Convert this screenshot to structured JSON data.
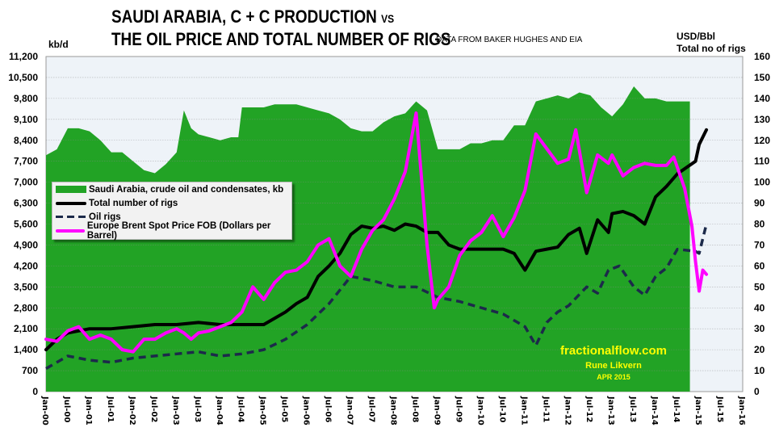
{
  "title_line1": "SAUDI ARABIA, C + C PRODUCTION",
  "title_vs": "VS",
  "title_line2": "THE OIL PRICE AND TOTAL NUMBER OF RIGS",
  "source_note": "DATA FROM BAKER HUGHES AND EIA",
  "watermark": {
    "site": "fractionalflow.com",
    "author": "Rune Likvern",
    "date": "APR 2015"
  },
  "chart_data": {
    "type": "area+line",
    "left_axis": {
      "label": "kb/d",
      "range": [
        0,
        11200
      ],
      "ticks": [
        "0",
        "700",
        "1,400",
        "2,100",
        "2,800",
        "3,500",
        "4,200",
        "4,900",
        "5,600",
        "6,300",
        "7,000",
        "7,700",
        "8,400",
        "9,100",
        "9,800",
        "10,500",
        "11,200"
      ]
    },
    "right_axis": {
      "label1": "USD/Bbl",
      "label2": "Total no of rigs",
      "range": [
        0,
        160
      ],
      "ticks": [
        "0",
        "10",
        "20",
        "30",
        "40",
        "50",
        "60",
        "70",
        "80",
        "90",
        "100",
        "110",
        "120",
        "130",
        "140",
        "150",
        "160"
      ]
    },
    "x_axis": {
      "range": [
        "2000-01",
        "2016-01"
      ],
      "ticks": [
        "Jan-00",
        "Jul-00",
        "Jan-01",
        "Jul-01",
        "Jan-02",
        "Jul-02",
        "Jan-03",
        "Jul-03",
        "Jan-04",
        "Jul-04",
        "Jan-05",
        "Jul-05",
        "Jan-06",
        "Jul-06",
        "Jan-07",
        "Jul-07",
        "Jan-08",
        "Jul-08",
        "Jan-09",
        "Jul-09",
        "Jan-10",
        "Jul-10",
        "Jan-11",
        "Jul-11",
        "Jan-12",
        "Jul-12",
        "Jan-13",
        "Jul-13",
        "Jan-14",
        "Jul-14",
        "Jan-15",
        "Jul-15",
        "Jan-16"
      ]
    },
    "grid": true,
    "legend_placement": "center-left",
    "series": [
      {
        "name": "Saudi Arabia, crude oil and condensates, kb",
        "kind": "area",
        "axis": "left",
        "color": "#22a325",
        "x": [
          "2000-01",
          "2000-04",
          "2000-07",
          "2000-10",
          "2001-01",
          "2001-04",
          "2001-07",
          "2001-10",
          "2002-01",
          "2002-04",
          "2002-07",
          "2002-10",
          "2003-01",
          "2003-03",
          "2003-05",
          "2003-07",
          "2003-10",
          "2004-01",
          "2004-04",
          "2004-06",
          "2004-07",
          "2004-10",
          "2005-01",
          "2005-04",
          "2005-07",
          "2005-10",
          "2006-01",
          "2006-04",
          "2006-07",
          "2006-10",
          "2007-01",
          "2007-04",
          "2007-07",
          "2007-10",
          "2008-01",
          "2008-04",
          "2008-07",
          "2008-10",
          "2009-01",
          "2009-04",
          "2009-07",
          "2009-10",
          "2010-01",
          "2010-04",
          "2010-07",
          "2010-10",
          "2011-01",
          "2011-04",
          "2011-07",
          "2011-10",
          "2012-01",
          "2012-04",
          "2012-07",
          "2012-10",
          "2013-01",
          "2013-04",
          "2013-07",
          "2013-10",
          "2014-01",
          "2014-04",
          "2014-07",
          "2014-10"
        ],
        "values": [
          7900,
          8100,
          8800,
          8800,
          8700,
          8400,
          8000,
          8000,
          7700,
          7400,
          7300,
          7600,
          8000,
          9400,
          8800,
          8600,
          8500,
          8400,
          8500,
          8500,
          9500,
          9500,
          9500,
          9600,
          9600,
          9600,
          9500,
          9400,
          9300,
          9100,
          8800,
          8700,
          8700,
          9000,
          9200,
          9300,
          9700,
          9400,
          8100,
          8100,
          8100,
          8300,
          8300,
          8400,
          8400,
          8900,
          8900,
          9700,
          9800,
          9900,
          9800,
          10000,
          9900,
          9500,
          9200,
          9600,
          10200,
          9800,
          9800,
          9700,
          9700,
          9700
        ]
      },
      {
        "name": "Total number of rigs",
        "kind": "line",
        "axis": "right",
        "color": "#000000",
        "x": [
          "2000-01",
          "2000-04",
          "2000-07",
          "2000-10",
          "2001-01",
          "2001-07",
          "2002-01",
          "2002-07",
          "2003-01",
          "2003-07",
          "2004-01",
          "2004-07",
          "2005-01",
          "2005-04",
          "2005-07",
          "2005-10",
          "2006-01",
          "2006-04",
          "2006-07",
          "2006-10",
          "2007-01",
          "2007-04",
          "2007-07",
          "2007-10",
          "2008-01",
          "2008-04",
          "2008-07",
          "2008-10",
          "2009-01",
          "2009-04",
          "2009-07",
          "2009-10",
          "2010-01",
          "2010-07",
          "2010-10",
          "2011-01",
          "2011-04",
          "2011-07",
          "2011-10",
          "2012-01",
          "2012-04",
          "2012-06",
          "2012-09",
          "2012-12",
          "2013-01",
          "2013-04",
          "2013-07",
          "2013-10",
          "2014-01",
          "2014-04",
          "2014-07",
          "2014-12",
          "2015-01",
          "2015-03"
        ],
        "values": [
          20,
          25,
          28,
          29,
          30,
          30,
          31,
          32,
          32,
          33,
          32,
          32,
          32,
          35,
          38,
          42,
          45,
          55,
          60,
          66,
          75,
          79,
          78,
          79,
          77,
          80,
          79,
          76,
          76,
          70,
          68,
          68,
          68,
          68,
          66,
          58,
          67,
          68,
          69,
          75,
          78,
          66,
          82,
          76,
          85,
          86,
          84,
          80,
          93,
          98,
          104,
          110,
          118,
          125
        ]
      },
      {
        "name": "Oil rigs",
        "kind": "dashed-line",
        "axis": "right",
        "color": "#1c2a4a",
        "x": [
          "2000-01",
          "2000-07",
          "2001-01",
          "2001-07",
          "2002-01",
          "2002-07",
          "2003-01",
          "2003-07",
          "2004-01",
          "2004-07",
          "2005-01",
          "2005-07",
          "2006-01",
          "2006-07",
          "2007-01",
          "2007-07",
          "2008-01",
          "2008-07",
          "2009-01",
          "2009-07",
          "2010-01",
          "2010-07",
          "2011-01",
          "2011-04",
          "2011-07",
          "2011-10",
          "2012-01",
          "2012-06",
          "2012-09",
          "2012-12",
          "2013-03",
          "2013-07",
          "2013-10",
          "2014-01",
          "2014-04",
          "2014-07",
          "2014-12",
          "2015-01",
          "2015-03"
        ],
        "values": [
          11,
          17,
          15,
          14,
          16,
          17,
          18,
          19,
          17,
          18,
          20,
          25,
          32,
          42,
          55,
          53,
          50,
          50,
          45,
          43,
          40,
          37,
          31,
          22,
          33,
          38,
          41,
          50,
          47,
          58,
          60,
          50,
          46,
          55,
          59,
          68,
          67,
          66,
          80
        ]
      },
      {
        "name": "Europe Brent Spot Price FOB (Dollars per Barrel)",
        "kind": "line",
        "axis": "right",
        "color": "#ff00ff",
        "x": [
          "2000-01",
          "2000-04",
          "2000-07",
          "2000-10",
          "2001-01",
          "2001-04",
          "2001-07",
          "2001-10",
          "2002-01",
          "2002-04",
          "2002-07",
          "2002-10",
          "2003-01",
          "2003-03",
          "2003-05",
          "2003-07",
          "2003-10",
          "2004-01",
          "2004-04",
          "2004-07",
          "2004-10",
          "2005-01",
          "2005-04",
          "2005-07",
          "2005-10",
          "2006-01",
          "2006-04",
          "2006-07",
          "2006-10",
          "2007-01",
          "2007-04",
          "2007-07",
          "2007-10",
          "2008-01",
          "2008-04",
          "2008-07",
          "2008-10",
          "2008-12",
          "2009-01",
          "2009-04",
          "2009-07",
          "2009-10",
          "2010-01",
          "2010-04",
          "2010-07",
          "2010-10",
          "2011-01",
          "2011-04",
          "2011-07",
          "2011-10",
          "2012-01",
          "2012-03",
          "2012-06",
          "2012-09",
          "2012-12",
          "2013-01",
          "2013-04",
          "2013-07",
          "2013-10",
          "2014-01",
          "2014-04",
          "2014-06",
          "2014-09",
          "2014-11",
          "2014-12",
          "2015-01",
          "2015-02",
          "2015-03"
        ],
        "values": [
          25,
          24,
          29,
          31,
          25,
          27,
          25,
          20,
          19,
          25,
          25,
          28,
          30,
          28,
          25,
          28,
          29,
          31,
          33,
          38,
          50,
          44,
          52,
          57,
          58,
          62,
          70,
          73,
          60,
          55,
          68,
          77,
          82,
          92,
          105,
          133,
          70,
          40,
          44,
          50,
          65,
          72,
          76,
          84,
          74,
          83,
          96,
          123,
          116,
          109,
          111,
          125,
          95,
          113,
          109,
          113,
          103,
          107,
          109,
          108,
          108,
          112,
          97,
          79,
          62,
          48,
          58,
          56
        ]
      }
    ]
  }
}
